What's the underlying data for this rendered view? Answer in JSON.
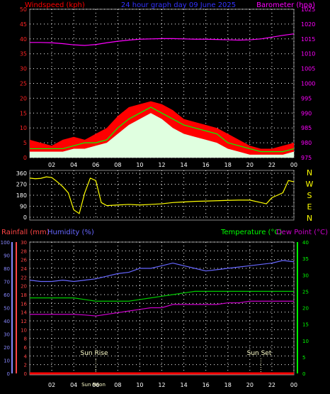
{
  "chart_data": [
    {
      "type": "line",
      "title": "24 hour graph day  09 June 2025",
      "left_axis_label": "Windspeed (kph)",
      "right_axis_label": "Barometer (hpa)",
      "x_ticks": [
        "02",
        "04",
        "06",
        "08",
        "10",
        "12",
        "14",
        "16",
        "18",
        "20",
        "22",
        "00"
      ],
      "ylim_left": [
        0,
        50
      ],
      "y_ticks_left": [
        "0",
        "5",
        "10",
        "15",
        "20",
        "25",
        "30",
        "35",
        "40",
        "45",
        "50"
      ],
      "ylim_right": [
        975,
        1025
      ],
      "y_ticks_right": [
        "975",
        "980",
        "985",
        "990",
        "995",
        "1000",
        "1005",
        "1010",
        "1015",
        "1020",
        "1025"
      ],
      "barometer": {
        "x": [
          0,
          1,
          2,
          3,
          4,
          5,
          6,
          7,
          8,
          9,
          10,
          11,
          12,
          13,
          14,
          15,
          16,
          17,
          18,
          19,
          20,
          21,
          22,
          23,
          24
        ],
        "y": [
          1013.8,
          1013.8,
          1013.7,
          1013.4,
          1013.0,
          1012.8,
          1013.1,
          1013.7,
          1014.2,
          1014.6,
          1014.9,
          1015.0,
          1015.1,
          1015.1,
          1015.0,
          1014.9,
          1014.9,
          1014.8,
          1014.7,
          1014.6,
          1014.7,
          1015.0,
          1015.6,
          1016.2,
          1016.7
        ]
      },
      "wind_gust": {
        "x": [
          0,
          1,
          2,
          3,
          4,
          5,
          6,
          7,
          8,
          9,
          10,
          11,
          12,
          13,
          14,
          15,
          16,
          17,
          18,
          19,
          20,
          21,
          22,
          23,
          24
        ],
        "y": [
          6,
          5,
          4,
          6,
          7,
          6,
          8,
          10,
          14,
          17,
          18,
          19,
          18,
          16,
          13,
          12,
          11,
          10,
          8,
          6,
          4,
          3,
          3,
          4,
          5
        ]
      },
      "wind_speed": {
        "x": [
          0,
          1,
          2,
          3,
          4,
          5,
          6,
          7,
          8,
          9,
          10,
          11,
          12,
          13,
          14,
          15,
          16,
          17,
          18,
          19,
          20,
          21,
          22,
          23,
          24
        ],
        "y": [
          2,
          2,
          2,
          2,
          3,
          3,
          4,
          5,
          8,
          11,
          13,
          15,
          13,
          10,
          8,
          7,
          6,
          5,
          3,
          2,
          1,
          1,
          1,
          1,
          2
        ]
      },
      "wind_avg": {
        "x": [
          0,
          1,
          2,
          3,
          4,
          5,
          6,
          7,
          8,
          9,
          10,
          11,
          12,
          13,
          14,
          15,
          16,
          17,
          18,
          19,
          20,
          21,
          22,
          23,
          24
        ],
        "y": [
          3,
          3,
          3,
          3,
          4,
          5,
          5,
          6,
          10,
          13,
          15,
          17,
          15,
          13,
          11,
          10,
          9,
          8,
          5,
          4,
          3,
          2,
          2,
          2,
          3
        ]
      },
      "lines": {
        "gust": "#ff0000",
        "speed": "#e0ffe0",
        "avg": "#00ff00",
        "barometer": "#ff00ff"
      }
    },
    {
      "type": "line",
      "name": "direction",
      "right_labels": [
        "N",
        "W",
        "S",
        "E",
        "N"
      ],
      "ylim": [
        0,
        360
      ],
      "y_ticks": [
        "0",
        "90",
        "180",
        "270",
        "360"
      ],
      "direction": {
        "x": [
          0,
          0.5,
          1,
          1.5,
          2,
          2.5,
          3,
          3.5,
          4,
          4.5,
          5,
          5.5,
          6,
          6.5,
          7,
          8,
          9,
          10,
          11,
          12,
          13,
          14,
          15,
          16,
          17,
          18,
          19,
          20,
          21,
          21.5,
          22,
          22.5,
          23,
          23.5,
          24
        ],
        "y": [
          320,
          315,
          318,
          330,
          325,
          290,
          250,
          200,
          60,
          30,
          200,
          320,
          300,
          120,
          95,
          100,
          105,
          100,
          105,
          110,
          120,
          125,
          130,
          132,
          135,
          138,
          140,
          140,
          120,
          110,
          160,
          180,
          200,
          300,
          290
        ]
      },
      "color": "#ffff00"
    },
    {
      "type": "line",
      "rain_label": "Rainfall (mm)",
      "humidity_label": "Humidity (%)",
      "temperature_label": "Temperature (°C)",
      "dewpoint_label": "Dew Point (°C)",
      "y_ticks_humidity": [
        "0",
        "10",
        "20",
        "30",
        "40",
        "50",
        "60",
        "70",
        "80",
        "90",
        "100"
      ],
      "y_ticks_rain": [
        "0",
        "2",
        "4",
        "6",
        "8",
        "10",
        "12",
        "14",
        "16",
        "18",
        "20",
        "22",
        "24",
        "26",
        "28",
        "30"
      ],
      "y_ticks_temp": [
        "0",
        "5",
        "10",
        "15",
        "20",
        "25",
        "30",
        "35",
        "40"
      ],
      "humidity": {
        "x": [
          0,
          1,
          2,
          3,
          4,
          5,
          6,
          7,
          8,
          9,
          10,
          11,
          12,
          13,
          14,
          15,
          16,
          17,
          18,
          19,
          20,
          21,
          22,
          23,
          24
        ],
        "y": [
          71,
          70,
          70,
          71,
          70,
          71,
          72,
          74,
          76,
          77,
          80,
          80,
          82,
          84,
          82,
          80,
          78,
          79,
          80,
          81,
          82,
          83,
          84,
          86,
          85
        ]
      },
      "temperature": {
        "x": [
          0,
          1,
          2,
          3,
          4,
          5,
          6,
          7,
          8,
          9,
          10,
          11,
          12,
          13,
          14,
          15,
          16,
          17,
          18,
          19,
          20,
          21,
          22,
          23,
          24
        ],
        "y": [
          23,
          23,
          23,
          23,
          23,
          22.5,
          22,
          22,
          22,
          22,
          22.5,
          23,
          23.5,
          24,
          24.5,
          25,
          25,
          25,
          25,
          25,
          25,
          25,
          25,
          25,
          25
        ]
      },
      "dewpoint": {
        "x": [
          0,
          1,
          2,
          3,
          4,
          5,
          6,
          7,
          8,
          9,
          10,
          11,
          12,
          13,
          14,
          15,
          16,
          17,
          18,
          19,
          20,
          21,
          22,
          23,
          24
        ],
        "y": [
          18,
          18,
          18,
          18,
          18,
          17.8,
          17.5,
          18,
          18.5,
          19,
          19.5,
          20,
          20,
          21,
          21,
          21,
          21,
          21,
          21.5,
          21.5,
          22,
          22,
          22,
          22,
          22
        ]
      },
      "rainfall": {
        "x": [
          0,
          24
        ],
        "y": [
          0,
          0
        ]
      },
      "sun_rise_label": "Sun Rise",
      "sun_set_label": "Sun Set",
      "sun_rise_hour": 6,
      "sun_set_hour": 21,
      "midday_label": "Sun Noon",
      "colors": {
        "humidity": "#6666ff",
        "temperature": "#00cc00",
        "dewpoint": "#cc00cc",
        "rain": "#ff0000",
        "rain_axis": "#ff4444",
        "temp_axis": "#00ff00",
        "humidity_axis": "#8888ff",
        "grid": "#ffffff"
      }
    }
  ]
}
